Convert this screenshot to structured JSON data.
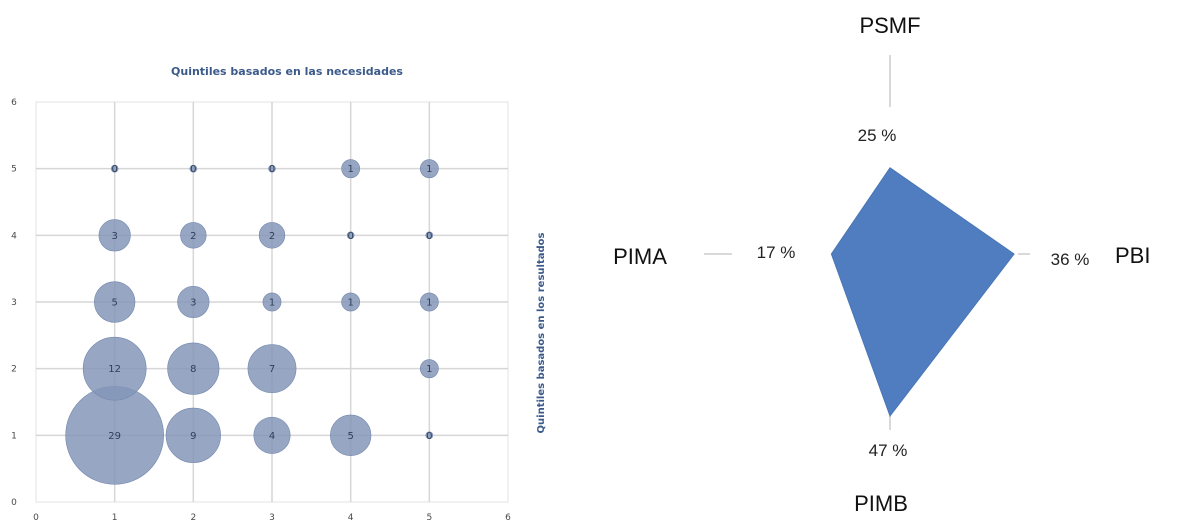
{
  "chart_data": [
    {
      "type": "scatter",
      "subtype": "bubble",
      "title": "Quintiles basados en las necesidades",
      "xlabel": "",
      "ylabel": "Quintiles basados en los resultados",
      "xlim": [
        0,
        6
      ],
      "ylim": [
        0,
        6
      ],
      "xticks": [
        "0",
        "1",
        "2",
        "3",
        "4",
        "5",
        "6"
      ],
      "yticks": [
        "0",
        "1",
        "2",
        "3",
        "4",
        "5",
        "6"
      ],
      "grid": true,
      "color": "#8496b8",
      "points": [
        {
          "x": 1,
          "y": 1,
          "size": 29,
          "label": "29"
        },
        {
          "x": 2,
          "y": 1,
          "size": 9,
          "label": "9"
        },
        {
          "x": 3,
          "y": 1,
          "size": 4,
          "label": "4"
        },
        {
          "x": 4,
          "y": 1,
          "size": 5,
          "label": "5"
        },
        {
          "x": 5,
          "y": 1,
          "size": 0,
          "label": "0"
        },
        {
          "x": 1,
          "y": 2,
          "size": 12,
          "label": "12"
        },
        {
          "x": 2,
          "y": 2,
          "size": 8,
          "label": "8"
        },
        {
          "x": 3,
          "y": 2,
          "size": 7,
          "label": "7"
        },
        {
          "x": 5,
          "y": 2,
          "size": 1,
          "label": "1"
        },
        {
          "x": 1,
          "y": 3,
          "size": 5,
          "label": "5"
        },
        {
          "x": 2,
          "y": 3,
          "size": 3,
          "label": "3"
        },
        {
          "x": 3,
          "y": 3,
          "size": 1,
          "label": "1"
        },
        {
          "x": 4,
          "y": 3,
          "size": 1,
          "label": "1"
        },
        {
          "x": 5,
          "y": 3,
          "size": 1,
          "label": "1"
        },
        {
          "x": 1,
          "y": 4,
          "size": 3,
          "label": "3"
        },
        {
          "x": 2,
          "y": 4,
          "size": 2,
          "label": "2"
        },
        {
          "x": 3,
          "y": 4,
          "size": 2,
          "label": "2"
        },
        {
          "x": 4,
          "y": 4,
          "size": 0,
          "label": "0"
        },
        {
          "x": 5,
          "y": 4,
          "size": 0,
          "label": "0"
        },
        {
          "x": 1,
          "y": 5,
          "size": 0,
          "label": "0"
        },
        {
          "x": 2,
          "y": 5,
          "size": 0,
          "label": "0"
        },
        {
          "x": 3,
          "y": 5,
          "size": 0,
          "label": "0"
        },
        {
          "x": 4,
          "y": 5,
          "size": 1,
          "label": "1"
        },
        {
          "x": 5,
          "y": 5,
          "size": 1,
          "label": "1"
        }
      ]
    },
    {
      "type": "radar",
      "color": "#4f7dbf",
      "axis_color": "#d9d9d9",
      "axes": [
        {
          "name": "PSMF",
          "value": 25,
          "label": "25 %"
        },
        {
          "name": "PBI",
          "value": 36,
          "label": "36 %"
        },
        {
          "name": "PIMB",
          "value": 47,
          "label": "47 %"
        },
        {
          "name": "PIMA",
          "value": 17,
          "label": "17 %"
        }
      ]
    }
  ]
}
